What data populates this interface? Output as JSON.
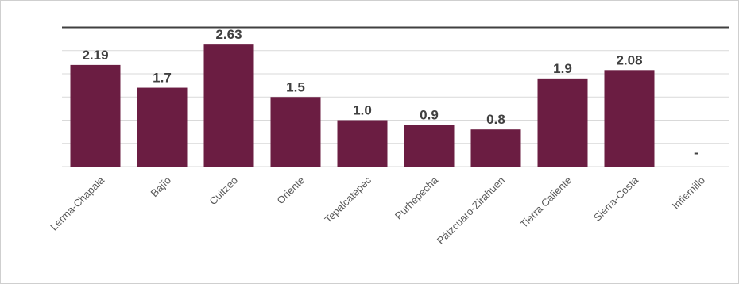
{
  "chart_data": {
    "type": "bar",
    "categories": [
      "Lerma-Chapala",
      "Bajío",
      "Cuitzeo",
      "Oriente",
      "Tepalcatepec",
      "Purhépecha",
      "Pátzcuaro-Zirahuen",
      "Tierra Caliente",
      "Sierra-Costa",
      "Infiernillo"
    ],
    "values": [
      2.19,
      1.7,
      2.63,
      1.5,
      1.0,
      0.9,
      0.8,
      1.9,
      2.08,
      null
    ],
    "value_labels": [
      "2.19",
      "1.7",
      "2.63",
      "1.5",
      "1.0",
      "0.9",
      "0.8",
      "1.9",
      "2.08",
      "-"
    ],
    "ylim": [
      0,
      3
    ],
    "grid": true,
    "bar_color": "#6b1d42",
    "title": "",
    "xlabel": "",
    "ylabel": ""
  }
}
